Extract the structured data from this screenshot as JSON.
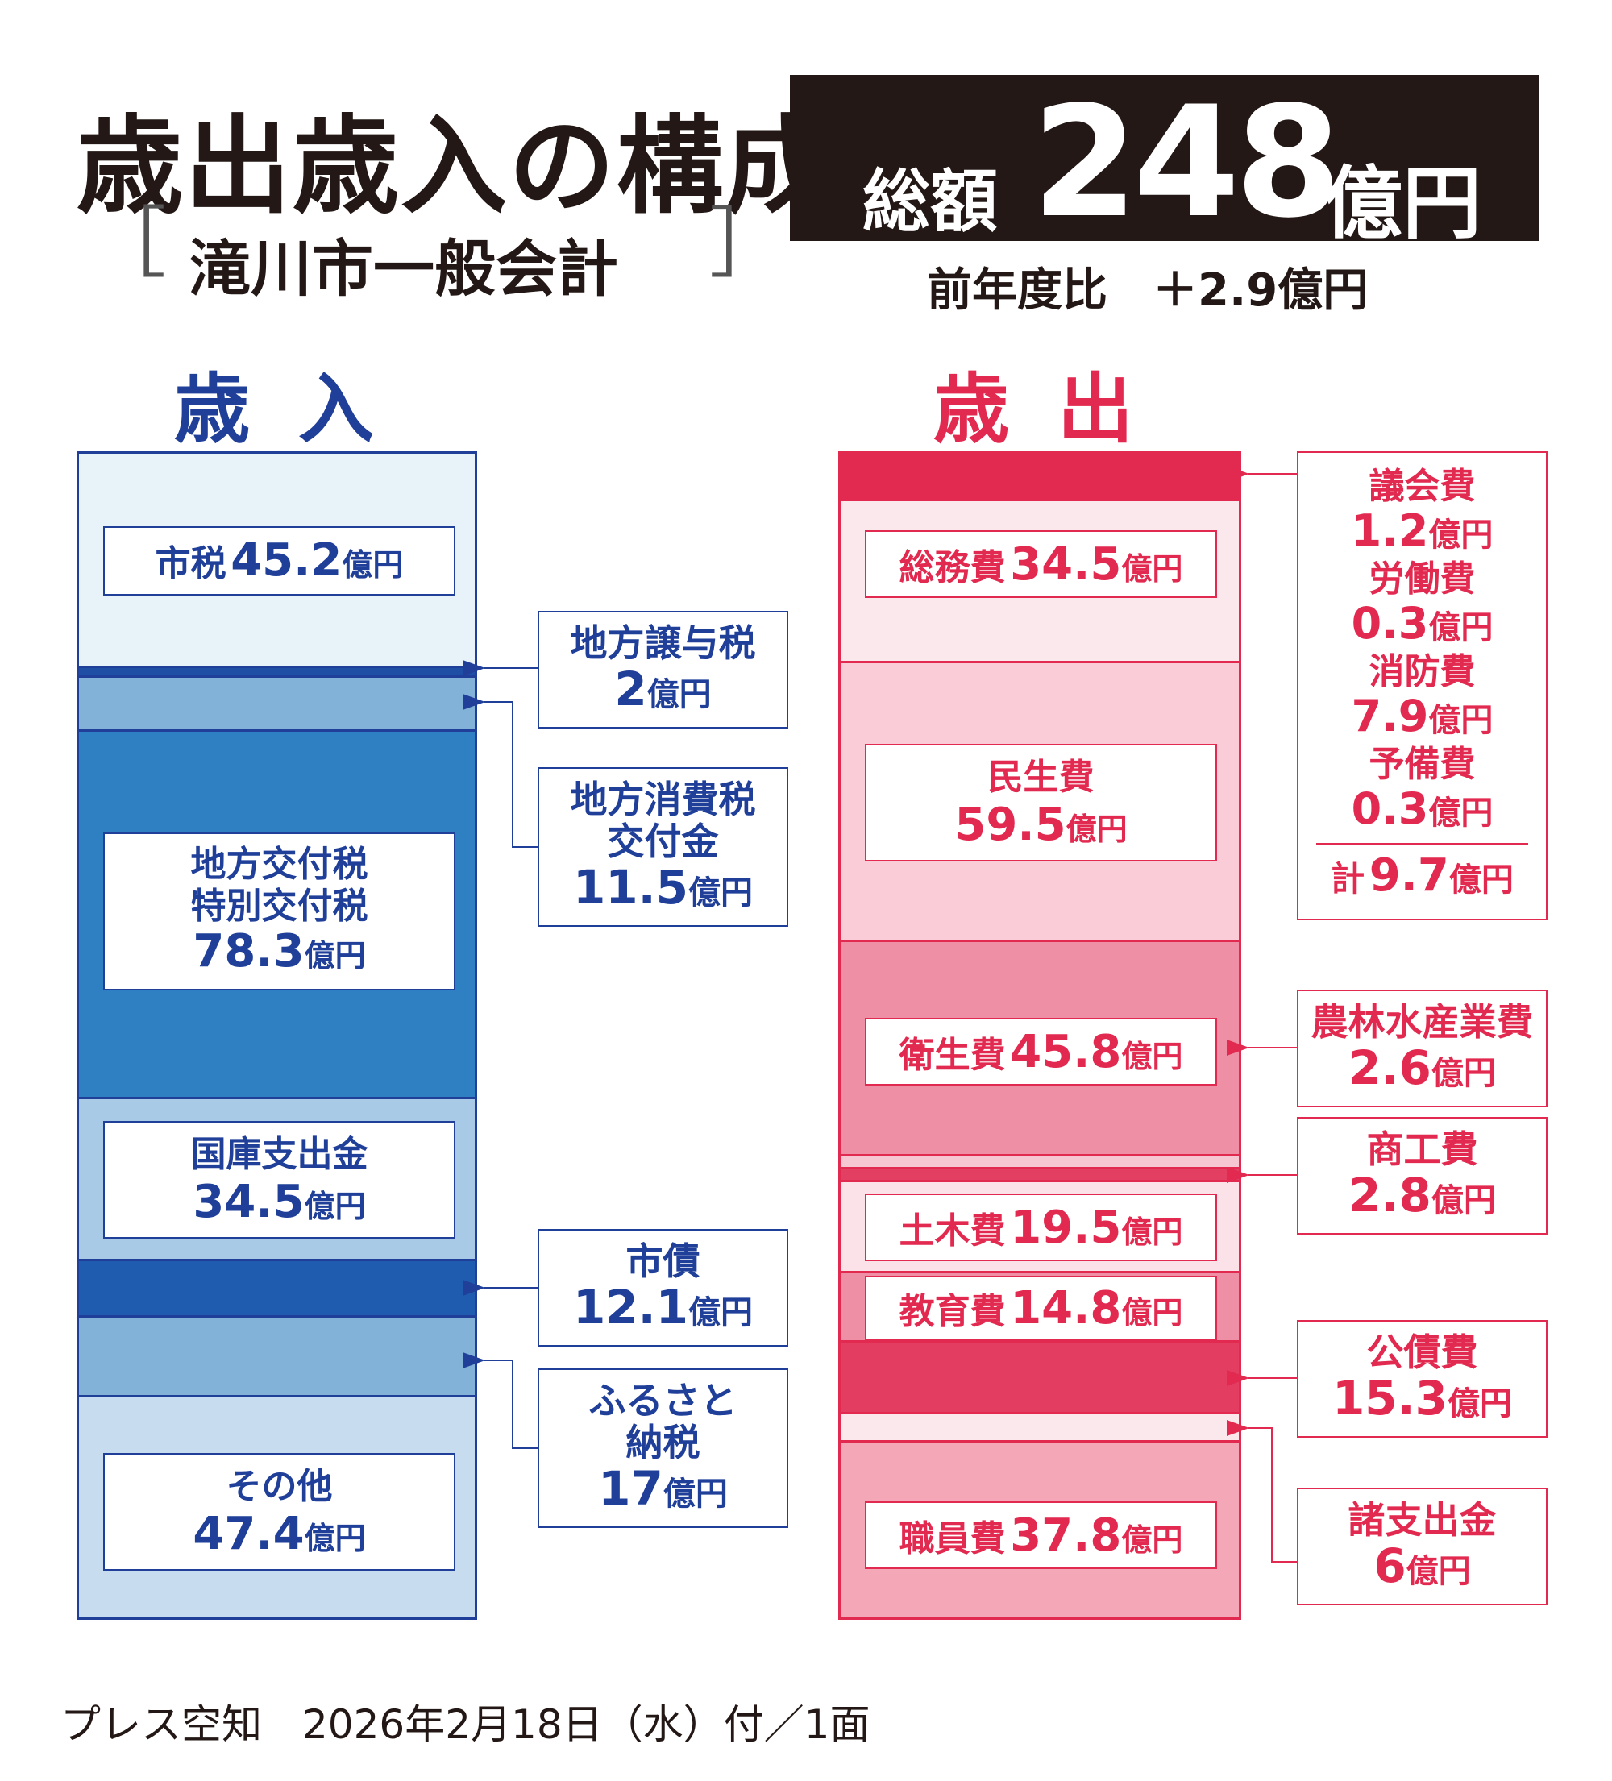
{
  "title": "歳出歳入の構成",
  "subtitle": "滝川市一般会計",
  "subtitle_brackets": [
    "［",
    "］"
  ],
  "total": {
    "label": "総額",
    "amount": "248",
    "unit": "億円"
  },
  "yoy": "前年度比　＋2.9億円",
  "revenue_heading": "歳入",
  "expenditure_heading": "歳出",
  "footer": "プレス空知　2026年2月18日（水）付／1面",
  "colors": {
    "revenue_text": "#1f3f99",
    "expenditure_text": "#e2294f",
    "total_box": "#231815"
  },
  "chart_data": [
    {
      "type": "bar",
      "stacked": true,
      "title": "歳入",
      "unit": "億円",
      "items": [
        {
          "name": "市税",
          "value": 45.2,
          "color": "#e8f2f9",
          "label": "inside"
        },
        {
          "name": "地方譲与税",
          "value": 2,
          "color": "#1f4fa5",
          "label": "callout"
        },
        {
          "name": "地方消費税交付金",
          "value": 11.5,
          "color": "#82b2d8",
          "label": "callout"
        },
        {
          "name": "地方交付税特別交付税",
          "value": 78.3,
          "color": "#2e80c3",
          "label": "inside"
        },
        {
          "name": "国庫支出金",
          "value": 34.5,
          "color": "#a9cae6",
          "label": "inside"
        },
        {
          "name": "市債",
          "value": 12.1,
          "color": "#1f5cb0",
          "label": "callout"
        },
        {
          "name": "ふるさと納税",
          "value": 17,
          "color": "#82b2d8",
          "label": "callout"
        },
        {
          "name": "その他",
          "value": 47.4,
          "color": "#c8dcef",
          "label": "inside"
        }
      ]
    },
    {
      "type": "bar",
      "stacked": true,
      "title": "歳出",
      "unit": "億円",
      "items": [
        {
          "name": "議会費・労働費・消防費・予備費",
          "value": 9.7,
          "color": "#e2294f",
          "label": "callout"
        },
        {
          "name": "総務費",
          "value": 34.5,
          "color": "#fbe8ed",
          "label": "inside"
        },
        {
          "name": "民生費",
          "value": 59.5,
          "color": "#f9ccd8",
          "label": "inside"
        },
        {
          "name": "衛生費",
          "value": 45.8,
          "color": "#ee8fa6",
          "label": "inside"
        },
        {
          "name": "農林水産業費",
          "value": 2.6,
          "color": "#f7c6d3",
          "label": "callout"
        },
        {
          "name": "商工費",
          "value": 2.8,
          "color": "#e23f62",
          "label": "callout"
        },
        {
          "name": "土木費",
          "value": 19.5,
          "color": "#fbe2e9",
          "label": "inside"
        },
        {
          "name": "教育費",
          "value": 14.8,
          "color": "#ee8fa6",
          "label": "inside"
        },
        {
          "name": "公債費",
          "value": 15.3,
          "color": "#e43d62",
          "label": "callout"
        },
        {
          "name": "諸支出金",
          "value": 6,
          "color": "#fbe8ed",
          "label": "callout"
        },
        {
          "name": "職員費",
          "value": 37.8,
          "color": "#f3a7b7",
          "label": "inside"
        }
      ]
    }
  ],
  "revenue_labels": {
    "shizei": {
      "name": "市税",
      "value": "45.2",
      "unit": "億円"
    },
    "kofuzei": {
      "name1": "地方交付税",
      "name2": "特別交付税",
      "value": "78.3",
      "unit": "億円"
    },
    "kokko": {
      "name": "国庫支出金",
      "value": "34.5",
      "unit": "億円"
    },
    "sonota": {
      "name": "その他",
      "value": "47.4",
      "unit": "億円"
    }
  },
  "revenue_callouts": {
    "joyozei": {
      "name": "地方譲与税",
      "value": "2",
      "unit": "億円"
    },
    "shohizei": {
      "name1": "地方消費税",
      "name2": "交付金",
      "value": "11.5",
      "unit": "億円"
    },
    "shisai": {
      "name": "市債",
      "value": "12.1",
      "unit": "億円"
    },
    "furusato": {
      "name1": "ふるさと",
      "name2": "納税",
      "value": "17",
      "unit": "億円"
    }
  },
  "expenditure_labels": {
    "somu": {
      "name": "総務費",
      "value": "34.5",
      "unit": "億円"
    },
    "minsei": {
      "name": "民生費",
      "value": "59.5",
      "unit": "億円"
    },
    "eisei": {
      "name": "衛生費",
      "value": "45.8",
      "unit": "億円"
    },
    "doboku": {
      "name": "土木費",
      "value": "19.5",
      "unit": "億円"
    },
    "kyoiku": {
      "name": "教育費",
      "value": "14.8",
      "unit": "億円"
    },
    "shokuin": {
      "name": "職員費",
      "value": "37.8",
      "unit": "億円"
    }
  },
  "expenditure_callouts": {
    "misc": {
      "items": [
        {
          "name": "議会費",
          "value": "1.2",
          "unit": "億円"
        },
        {
          "name": "労働費",
          "value": "0.3",
          "unit": "億円"
        },
        {
          "name": "消防費",
          "value": "7.9",
          "unit": "億円"
        },
        {
          "name": "予備費",
          "value": "0.3",
          "unit": "億円"
        }
      ],
      "total_label": "計",
      "total_value": "9.7",
      "total_unit": "億円"
    },
    "norin": {
      "name": "農林水産業費",
      "value": "2.6",
      "unit": "億円"
    },
    "shoko": {
      "name": "商工費",
      "value": "2.8",
      "unit": "億円"
    },
    "kosai": {
      "name": "公債費",
      "value": "15.3",
      "unit": "億円"
    },
    "shoshishutsu": {
      "name": "諸支出金",
      "value": "6",
      "unit": "億円"
    }
  }
}
